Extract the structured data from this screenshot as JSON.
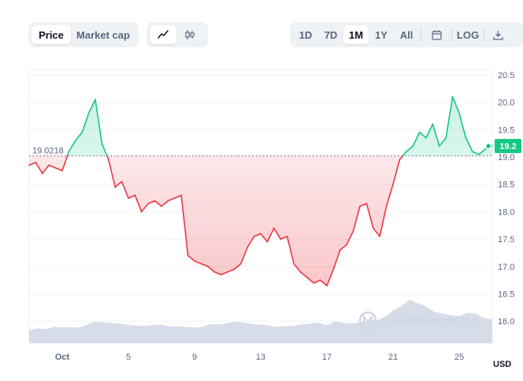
{
  "toolbar": {
    "metric_tabs": [
      {
        "label": "Price",
        "active": true
      },
      {
        "label": "Market cap",
        "active": false
      }
    ],
    "chart_type_icons": [
      {
        "icon": "line-chart-icon",
        "active": true
      },
      {
        "icon": "candlestick-icon",
        "active": false
      }
    ],
    "ranges": [
      {
        "label": "1D",
        "active": false
      },
      {
        "label": "7D",
        "active": false
      },
      {
        "label": "1M",
        "active": true
      },
      {
        "label": "1Y",
        "active": false
      },
      {
        "label": "All",
        "active": false
      }
    ],
    "calendar_icon": "calendar-icon",
    "log_label": "LOG",
    "download_icon": "download-icon"
  },
  "watermark": "CoinMarketCap",
  "colors": {
    "up": "#16c784",
    "down": "#ea3943",
    "volume": "#cfd6e4",
    "current_badge": "#16c784"
  },
  "chart_data": {
    "type": "line",
    "currency": "USD",
    "baseline": 19.0218,
    "baseline_label": "19.0218",
    "current_value": 19.2,
    "current_label": "19.2",
    "ylim": [
      15.6,
      20.6
    ],
    "y_ticks": [
      20.5,
      20.0,
      19.5,
      19.0,
      18.5,
      18.0,
      17.5,
      17.0,
      16.5,
      16.0
    ],
    "y_tick_labels": [
      "20.5",
      "20.0",
      "19.5",
      "19.0",
      "18.5",
      "18.0",
      "17.5",
      "17.0",
      "16.5",
      "16.0"
    ],
    "xlim": [
      1,
      29
    ],
    "x_ticks": [
      3,
      7,
      11,
      15,
      19,
      23,
      27
    ],
    "x_tick_labels": [
      "Oct",
      "5",
      "9",
      "13",
      "17",
      "21",
      "25"
    ],
    "x_unit": "day of month",
    "series": [
      {
        "x": [
          1.0,
          1.4,
          1.8,
          2.2,
          2.6,
          3.0,
          3.4,
          3.8,
          4.2,
          4.6,
          5.0,
          5.4,
          5.8,
          6.2,
          6.6,
          7.0,
          7.4,
          7.8,
          8.2,
          8.6,
          9.0,
          9.4,
          9.8,
          10.2,
          10.6,
          11.0,
          11.4,
          11.8,
          12.2,
          12.6,
          13.0,
          13.4,
          13.8,
          14.2,
          14.6,
          15.0,
          15.4,
          15.8,
          16.2,
          16.6,
          17.0,
          17.4,
          17.8,
          18.2,
          18.6,
          19.0,
          19.4,
          19.8,
          20.2,
          20.6,
          21.0,
          21.4,
          21.8,
          22.2,
          22.6,
          23.0,
          23.4,
          23.8,
          24.2,
          24.6,
          25.0,
          25.4,
          25.8,
          26.2,
          26.6,
          27.0,
          27.4,
          27.8,
          28.2,
          28.6,
          29.0
        ],
        "y": [
          18.85,
          18.9,
          18.7,
          18.85,
          18.8,
          18.75,
          19.1,
          19.3,
          19.45,
          19.8,
          20.05,
          19.25,
          18.95,
          18.45,
          18.55,
          18.25,
          18.3,
          18.0,
          18.15,
          18.2,
          18.1,
          18.2,
          18.25,
          18.3,
          17.2,
          17.1,
          17.05,
          17.0,
          16.9,
          16.85,
          16.9,
          16.95,
          17.05,
          17.35,
          17.55,
          17.6,
          17.45,
          17.7,
          17.5,
          17.55,
          17.05,
          16.9,
          16.8,
          16.7,
          16.75,
          16.65,
          16.95,
          17.3,
          17.4,
          17.65,
          18.1,
          18.15,
          17.7,
          17.55,
          18.1,
          18.5,
          18.95,
          19.1,
          19.2,
          19.45,
          19.35,
          19.6,
          19.2,
          19.35,
          20.1,
          19.8,
          19.35,
          19.1,
          19.05,
          19.15,
          19.2
        ]
      }
    ],
    "volume": {
      "x": [
        1.0,
        1.5,
        2.0,
        2.5,
        3.0,
        3.5,
        4.0,
        4.5,
        5.0,
        5.5,
        6.0,
        6.5,
        7.0,
        7.5,
        8.0,
        8.5,
        9.0,
        9.5,
        10.0,
        10.5,
        11.0,
        11.5,
        12.0,
        12.5,
        13.0,
        13.5,
        14.0,
        14.5,
        15.0,
        15.5,
        16.0,
        16.5,
        17.0,
        17.5,
        18.0,
        18.5,
        19.0,
        19.5,
        20.0,
        20.5,
        21.0,
        21.5,
        22.0,
        22.5,
        23.0,
        23.5,
        24.0,
        24.5,
        25.0,
        25.5,
        26.0,
        26.5,
        27.0,
        27.5,
        28.0,
        28.5,
        29.0
      ],
      "level": [
        0.3,
        0.34,
        0.32,
        0.38,
        0.36,
        0.37,
        0.36,
        0.42,
        0.5,
        0.48,
        0.46,
        0.45,
        0.42,
        0.4,
        0.4,
        0.41,
        0.43,
        0.38,
        0.39,
        0.37,
        0.36,
        0.38,
        0.44,
        0.43,
        0.46,
        0.5,
        0.47,
        0.44,
        0.43,
        0.4,
        0.38,
        0.39,
        0.4,
        0.43,
        0.45,
        0.47,
        0.41,
        0.5,
        0.47,
        0.45,
        0.48,
        0.52,
        0.53,
        0.6,
        0.75,
        0.85,
        1.0,
        0.92,
        0.85,
        0.72,
        0.68,
        0.64,
        0.62,
        0.7,
        0.68,
        0.58,
        0.55
      ]
    }
  }
}
